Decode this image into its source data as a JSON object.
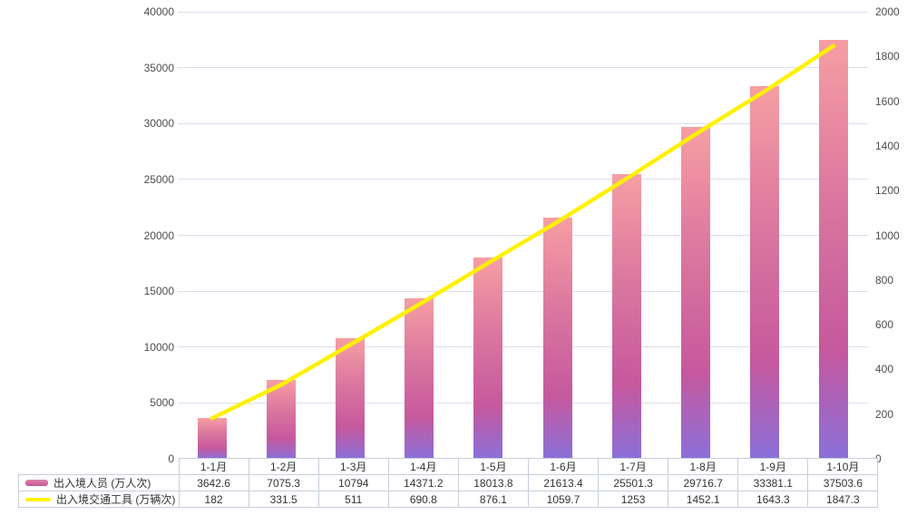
{
  "chart_data": {
    "type": "bar",
    "combo": "bar+line",
    "title": "",
    "categories": [
      "1-1月",
      "1-2月",
      "1-3月",
      "1-4月",
      "1-5月",
      "1-6月",
      "1-7月",
      "1-8月",
      "1-9月",
      "1-10月"
    ],
    "series": [
      {
        "name": "出入境人员 (万人次)",
        "type": "bar",
        "axis": "left",
        "values": [
          3642.6,
          7075.3,
          10794,
          14371.2,
          18013.8,
          21613.4,
          25501.3,
          29716.7,
          33381.1,
          37503.6
        ]
      },
      {
        "name": "出入境交通工具 (万辆次)",
        "type": "line",
        "axis": "right",
        "values": [
          182,
          331.5,
          511,
          690.8,
          876.1,
          1059.7,
          1253,
          1452.1,
          1643.3,
          1847.3
        ]
      }
    ],
    "axes": {
      "left": {
        "min": 0,
        "max": 40000,
        "step": 5000,
        "ticks": [
          0,
          5000,
          10000,
          15000,
          20000,
          25000,
          30000,
          35000,
          40000
        ]
      },
      "right": {
        "min": 0,
        "max": 2000,
        "step": 200,
        "ticks": [
          0,
          200,
          400,
          600,
          800,
          1000,
          1200,
          1400,
          1600,
          1800,
          2000
        ]
      }
    },
    "grid": true,
    "legend_position": "table-left-column"
  },
  "colors": {
    "background": "#ffffff",
    "bar_gradient_top": "#f69ea3",
    "bar_gradient_upper_mid": "#da779f",
    "bar_gradient_mid": "#c6589d",
    "bar_gradient_bottom": "#8a70d9",
    "line": "#fff100",
    "legend_bar_top": "#dd84ab",
    "legend_bar_bottom": "#c25394",
    "gridline": "#dcdfec",
    "table_border": "#c9cede",
    "axis_text": "#4d4d4d",
    "table_text": "#333333"
  }
}
